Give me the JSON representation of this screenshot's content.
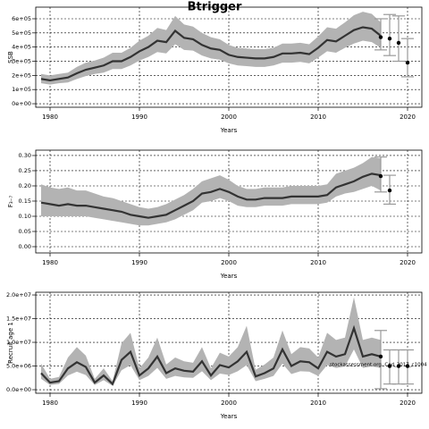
{
  "chart_data": [
    {
      "type": "line",
      "title": "Btrigger",
      "ylabel": "SSB",
      "xlabel": "Years",
      "xlim": [
        1978.4,
        2021.6
      ],
      "xticks": [
        1980,
        1990,
        2000,
        2010,
        2020
      ],
      "ylim": [
        -25000,
        682000
      ],
      "yticks": [
        {
          "value": 0,
          "label": "0e+00"
        },
        {
          "value": 100000,
          "label": "1e+05"
        },
        {
          "value": 200000,
          "label": "2e+05"
        },
        {
          "value": 300000,
          "label": "3e+05"
        },
        {
          "value": 400000,
          "label": "4e+05"
        },
        {
          "value": 500000,
          "label": "5e+05"
        },
        {
          "value": 600000,
          "label": "6e+05"
        }
      ],
      "grid": true,
      "color": "#333333",
      "band_color": "#b3b3b3",
      "x": [
        1979,
        1980,
        1981,
        1982,
        1983,
        1984,
        1985,
        1986,
        1987,
        1988,
        1989,
        1990,
        1991,
        1992,
        1993,
        1994,
        1995,
        1996,
        1997,
        1998,
        1999,
        2000,
        2001,
        2002,
        2003,
        2004,
        2005,
        2006,
        2007,
        2008,
        2009,
        2010,
        2011,
        2012,
        2013,
        2014,
        2015,
        2016,
        2017
      ],
      "values": [
        175000,
        165000,
        175000,
        185000,
        215000,
        240000,
        255000,
        270000,
        300000,
        300000,
        330000,
        370000,
        400000,
        445000,
        435000,
        515000,
        465000,
        455000,
        415000,
        390000,
        380000,
        345000,
        330000,
        325000,
        320000,
        320000,
        330000,
        355000,
        355000,
        360000,
        350000,
        395000,
        450000,
        440000,
        480000,
        520000,
        540000,
        530000,
        480000
      ],
      "low": [
        145000,
        135000,
        145000,
        150000,
        175000,
        195000,
        210000,
        220000,
        245000,
        245000,
        270000,
        305000,
        330000,
        365000,
        355000,
        420000,
        380000,
        375000,
        340000,
        320000,
        310000,
        285000,
        270000,
        265000,
        260000,
        260000,
        270000,
        290000,
        290000,
        295000,
        285000,
        325000,
        370000,
        360000,
        395000,
        425000,
        445000,
        435000,
        395000
      ],
      "high": [
        210000,
        200000,
        210000,
        220000,
        260000,
        290000,
        305000,
        325000,
        360000,
        360000,
        395000,
        445000,
        480000,
        535000,
        520000,
        620000,
        560000,
        545000,
        500000,
        470000,
        455000,
        415000,
        395000,
        390000,
        385000,
        385000,
        395000,
        425000,
        425000,
        430000,
        420000,
        475000,
        540000,
        530000,
        575000,
        625000,
        650000,
        635000,
        575000
      ],
      "forecast": {
        "x": [
          2017,
          2018,
          2019,
          2020
        ],
        "values": [
          470000,
          460000,
          430000,
          290000
        ],
        "low": [
          380000,
          340000,
          300000,
          190000
        ],
        "high": [
          600000,
          630000,
          620000,
          460000
        ]
      }
    },
    {
      "type": "line",
      "ylabel": "F₃₋₇",
      "xlabel": "Years",
      "xlim": [
        1978.4,
        2021.6
      ],
      "xticks": [
        1980,
        1990,
        2000,
        2010,
        2020
      ],
      "ylim": [
        -0.0206,
        0.3176
      ],
      "yticks": [
        {
          "value": 0,
          "label": "0.00"
        },
        {
          "value": 0.05,
          "label": "0.05"
        },
        {
          "value": 0.1,
          "label": "0.10"
        },
        {
          "value": 0.15,
          "label": "0.15"
        },
        {
          "value": 0.2,
          "label": "0.20"
        },
        {
          "value": 0.25,
          "label": "0.25"
        },
        {
          "value": 0.3,
          "label": "0.30"
        }
      ],
      "grid": true,
      "color": "#333333",
      "band_color": "#b3b3b3",
      "x": [
        1979,
        1980,
        1981,
        1982,
        1983,
        1984,
        1985,
        1986,
        1987,
        1988,
        1989,
        1990,
        1991,
        1992,
        1993,
        1994,
        1995,
        1996,
        1997,
        1998,
        1999,
        2000,
        2001,
        2002,
        2003,
        2004,
        2005,
        2006,
        2007,
        2008,
        2009,
        2010,
        2011,
        2012,
        2013,
        2014,
        2015,
        2016,
        2017
      ],
      "values": [
        0.145,
        0.14,
        0.135,
        0.14,
        0.135,
        0.135,
        0.13,
        0.125,
        0.12,
        0.115,
        0.105,
        0.1,
        0.095,
        0.1,
        0.105,
        0.12,
        0.135,
        0.15,
        0.175,
        0.18,
        0.19,
        0.18,
        0.165,
        0.155,
        0.155,
        0.16,
        0.16,
        0.16,
        0.165,
        0.165,
        0.165,
        0.165,
        0.17,
        0.195,
        0.205,
        0.215,
        0.23,
        0.24,
        0.235
      ],
      "low": [
        0.1,
        0.1,
        0.1,
        0.1,
        0.1,
        0.1,
        0.095,
        0.09,
        0.085,
        0.08,
        0.075,
        0.07,
        0.07,
        0.075,
        0.08,
        0.09,
        0.105,
        0.12,
        0.145,
        0.15,
        0.16,
        0.15,
        0.135,
        0.13,
        0.13,
        0.135,
        0.135,
        0.135,
        0.14,
        0.14,
        0.14,
        0.14,
        0.145,
        0.165,
        0.175,
        0.18,
        0.19,
        0.2,
        0.185
      ],
      "high": [
        0.205,
        0.195,
        0.19,
        0.195,
        0.185,
        0.185,
        0.175,
        0.165,
        0.16,
        0.15,
        0.14,
        0.13,
        0.125,
        0.13,
        0.14,
        0.155,
        0.17,
        0.19,
        0.215,
        0.225,
        0.235,
        0.22,
        0.2,
        0.19,
        0.19,
        0.195,
        0.195,
        0.195,
        0.2,
        0.2,
        0.2,
        0.2,
        0.205,
        0.24,
        0.25,
        0.26,
        0.275,
        0.295,
        0.29
      ],
      "forecast": {
        "x": [
          2017,
          2018
        ],
        "values": [
          0.232,
          0.185
        ],
        "low": [
          0.18,
          0.14
        ],
        "high": [
          0.295,
          0.235
        ]
      }
    },
    {
      "type": "line",
      "ylabel": "Recruit age 1",
      "xlabel": "Years",
      "annotation": "stockassessment.org, Cod_2017_c1004",
      "xlim": [
        1978.4,
        2021.6
      ],
      "xticks": [
        1980,
        1990,
        2000,
        2010,
        2020
      ],
      "ylim": [
        -750000,
        20570000
      ],
      "yticks": [
        {
          "value": 0,
          "label": "0.0e+00"
        },
        {
          "value": 5000000,
          "label": "5.0e+06"
        },
        {
          "value": 10000000,
          "label": "1.0e+07"
        },
        {
          "value": 15000000,
          "label": "1.5e+07"
        },
        {
          "value": 20000000,
          "label": "2.0e+07"
        }
      ],
      "grid": true,
      "color": "#333333",
      "band_color": "#b3b3b3",
      "x": [
        1979,
        1980,
        1981,
        1982,
        1983,
        1984,
        1985,
        1986,
        1987,
        1988,
        1989,
        1990,
        1991,
        1992,
        1993,
        1994,
        1995,
        1996,
        1997,
        1998,
        1999,
        2000,
        2001,
        2002,
        2003,
        2004,
        2005,
        2006,
        2007,
        2008,
        2009,
        2010,
        2011,
        2012,
        2013,
        2014,
        2015,
        2016,
        2017
      ],
      "values": [
        3500000,
        1500000,
        1800000,
        4500000,
        5800000,
        4800000,
        1500000,
        3000000,
        1200000,
        6300000,
        8000000,
        3000000,
        4500000,
        7000000,
        3500000,
        4500000,
        4000000,
        3800000,
        6000000,
        3000000,
        5200000,
        4700000,
        6000000,
        8000000,
        2800000,
        3500000,
        4500000,
        8500000,
        5000000,
        6000000,
        5800000,
        4500000,
        8000000,
        7000000,
        7500000,
        13000000,
        7000000,
        7500000,
        7000000
      ],
      "low": [
        2300000,
        1000000,
        1200000,
        3000000,
        3800000,
        3100000,
        1000000,
        2000000,
        800000,
        4100000,
        5200000,
        2000000,
        2900000,
        4600000,
        2300000,
        2900000,
        2600000,
        2500000,
        3900000,
        2000000,
        3400000,
        3100000,
        3900000,
        5200000,
        1800000,
        2300000,
        2900000,
        5500000,
        3300000,
        3900000,
        3800000,
        2900000,
        5200000,
        4600000,
        4900000,
        8500000,
        4600000,
        4900000,
        4600000
      ],
      "high": [
        5500000,
        2300000,
        2700000,
        6800000,
        9000000,
        7200000,
        2300000,
        4500000,
        1800000,
        9800000,
        12000000,
        4500000,
        6800000,
        11000000,
        5300000,
        6800000,
        6000000,
        5700000,
        9000000,
        4500000,
        7800000,
        7000000,
        9000000,
        13500000,
        4200000,
        5300000,
        6800000,
        12500000,
        7500000,
        9000000,
        8700000,
        6800000,
        12000000,
        10500000,
        11000000,
        19500000,
        10500000,
        11000000,
        10500000
      ],
      "forecast": {
        "x": [
          2017,
          2018,
          2019,
          2020
        ],
        "values": [
          7000000,
          5000000,
          5000000,
          5000000
        ],
        "low": [
          200000,
          1200000,
          1200000,
          1200000
        ],
        "high": [
          12500000,
          8400000,
          8400000,
          8400000
        ]
      }
    }
  ]
}
